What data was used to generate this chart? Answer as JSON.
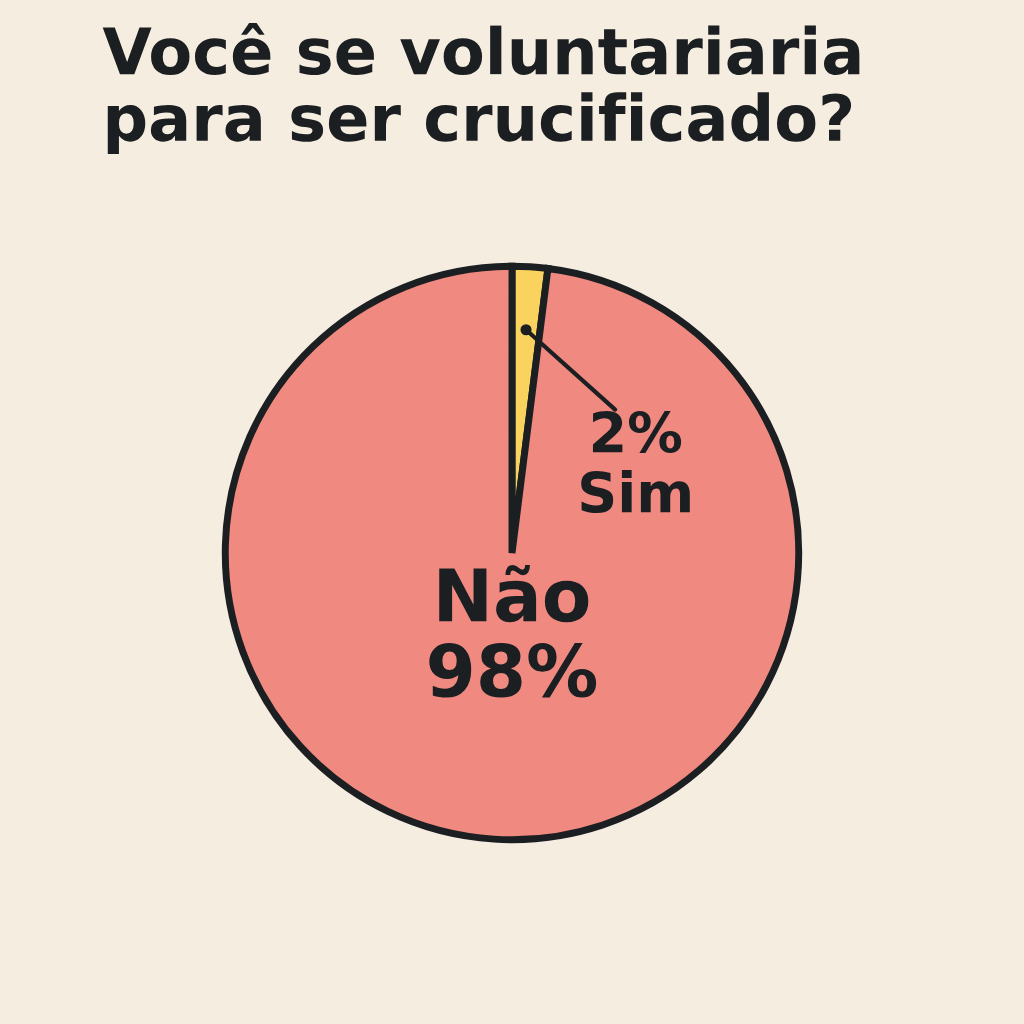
{
  "chart_data": {
    "type": "pie",
    "title": "Você se voluntariaria\npara ser crucificado?",
    "categories": [
      "Sim",
      "Não"
    ],
    "values": [
      2,
      98
    ],
    "colors": [
      "#fad25e",
      "#f08a80"
    ],
    "value_labels": [
      "2%",
      "98%"
    ]
  }
}
